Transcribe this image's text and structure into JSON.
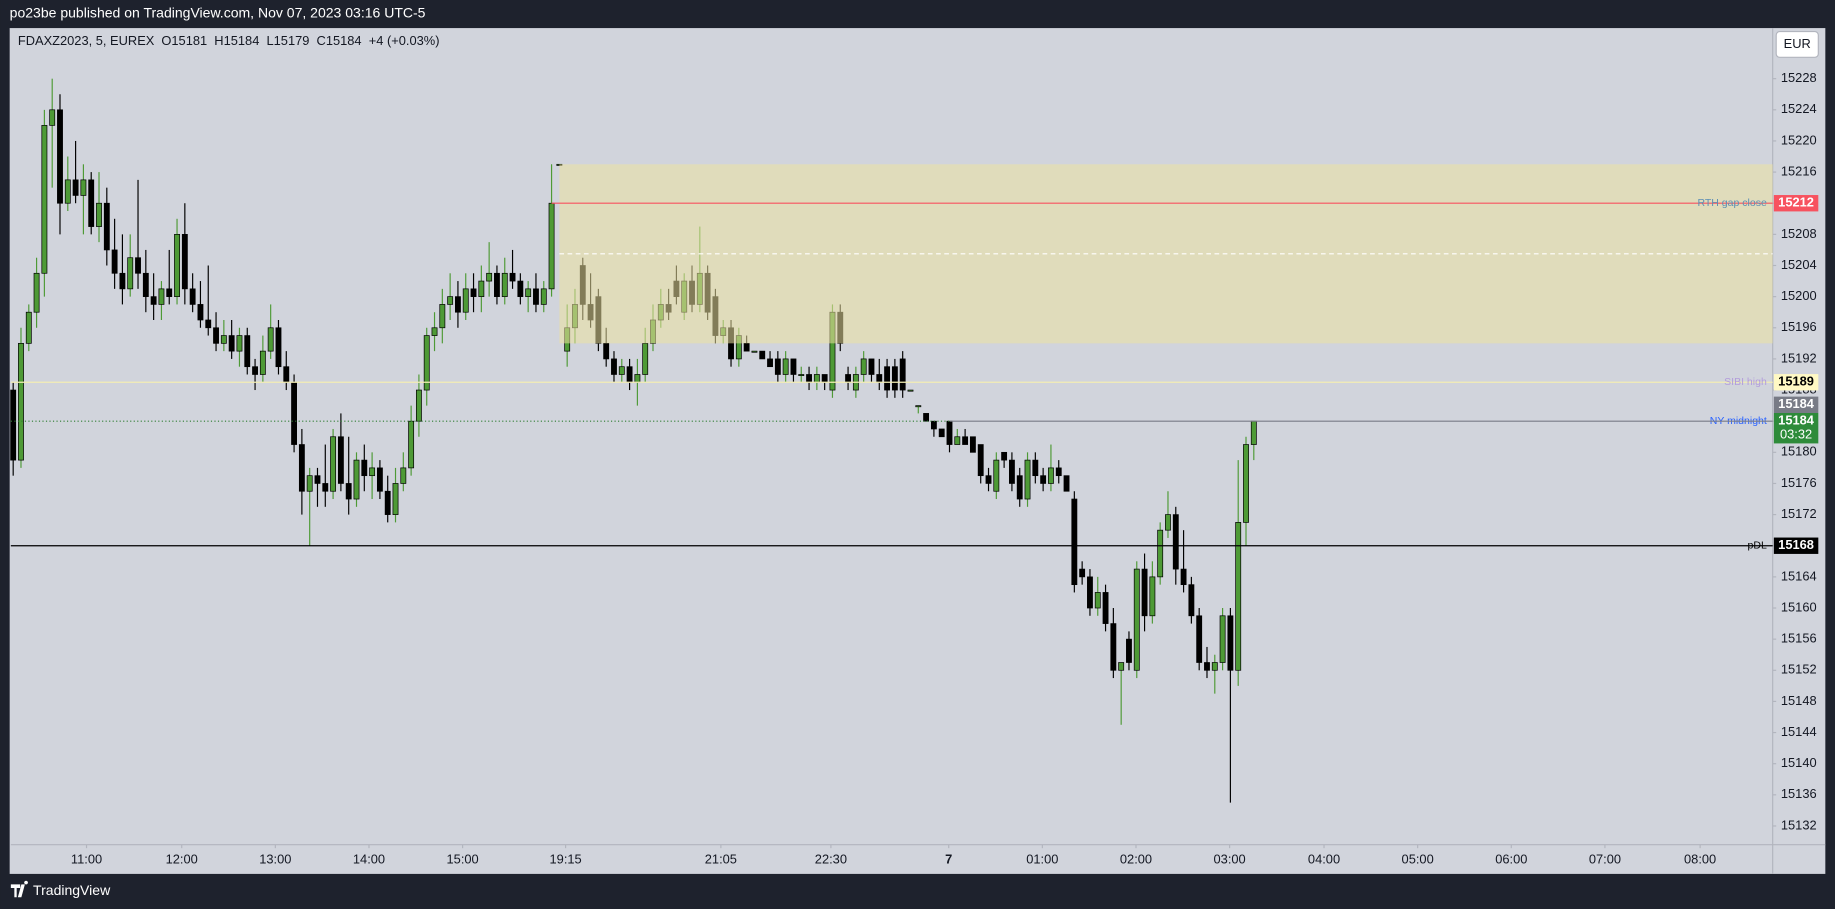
{
  "header": {
    "publisher": "po23be published on TradingView.com, Nov 07, 2023 03:16 UTC-5",
    "footer": "TradingView"
  },
  "chart_data": {
    "type": "candlestick",
    "symbol": "FDAXZ2023, 5, EUREX",
    "legend": "O15181  H15184  L15179  C15184  +4 (+0.03%)",
    "currency": "EUR",
    "ylim": [
      15129.6,
      15234.5
    ],
    "yticks": [
      15132,
      15136,
      15140,
      15144,
      15148,
      15152,
      15156,
      15160,
      15164,
      15168,
      15172,
      15176,
      15180,
      15184,
      15188,
      15192,
      15196,
      15200,
      15204,
      15208,
      15212,
      15216,
      15220,
      15224,
      15228
    ],
    "xlim": [
      -0.3,
      225.5
    ],
    "xticks": [
      {
        "value": 9.4,
        "label": "11:00"
      },
      {
        "value": 21.6,
        "label": "12:00"
      },
      {
        "value": 33.6,
        "label": "13:00"
      },
      {
        "value": 45.6,
        "label": "14:00"
      },
      {
        "value": 57.6,
        "label": "15:00"
      },
      {
        "value": 70.8,
        "label": "19:15"
      },
      {
        "value": 90.7,
        "label": "21:05"
      },
      {
        "value": 104.8,
        "label": "22:30"
      },
      {
        "value": 119.9,
        "label": "7"
      },
      {
        "value": 131.9,
        "label": "01:00"
      },
      {
        "value": 143.9,
        "label": "02:00"
      },
      {
        "value": 155.9,
        "label": "03:00"
      },
      {
        "value": 168.0,
        "label": "04:00"
      },
      {
        "value": 180.0,
        "label": "05:00"
      },
      {
        "value": 192.0,
        "label": "06:00"
      },
      {
        "value": 204.0,
        "label": "07:00"
      },
      {
        "value": 216.2,
        "label": "08:00"
      }
    ],
    "grid": false,
    "up_color": "#4e9a36",
    "down_color": "#000000",
    "last_color": "#2e8b3a",
    "countdown": "03:32",
    "candles": [
      [
        15188,
        15189,
        15177,
        15179
      ],
      [
        15179,
        15196,
        15178,
        15194
      ],
      [
        15194,
        15199,
        15193,
        15198
      ],
      [
        15198,
        15205,
        15196,
        15203
      ],
      [
        15203,
        15224,
        15200,
        15222
      ],
      [
        15222,
        15228,
        15214,
        15224
      ],
      [
        15224,
        15226,
        15208,
        15212
      ],
      [
        15212,
        15218,
        15211,
        15215
      ],
      [
        15215,
        15220,
        15212,
        15213
      ],
      [
        15213,
        15217,
        15208,
        15215
      ],
      [
        15215,
        15216,
        15208,
        15209
      ],
      [
        15209,
        15216,
        15207,
        15212
      ],
      [
        15212,
        15214,
        15204,
        15206
      ],
      [
        15206,
        15210,
        15201,
        15203
      ],
      [
        15203,
        15208,
        15199,
        15201
      ],
      [
        15201,
        15208,
        15200,
        15205
      ],
      [
        15205,
        15215,
        15201,
        15203
      ],
      [
        15203,
        15206,
        15198,
        15200
      ],
      [
        15200,
        15203,
        15197,
        15199
      ],
      [
        15199,
        15202,
        15197,
        15201
      ],
      [
        15201,
        15206,
        15199,
        15200
      ],
      [
        15200,
        15210,
        15199,
        15208
      ],
      [
        15208,
        15212,
        15199,
        15201
      ],
      [
        15201,
        15203,
        15198,
        15199
      ],
      [
        15199,
        15202,
        15196,
        15197
      ],
      [
        15197,
        15204,
        15195,
        15196
      ],
      [
        15196,
        15198,
        15193,
        15194
      ],
      [
        15194,
        15197,
        15193,
        15195
      ],
      [
        15195,
        15197,
        15192,
        15193
      ],
      [
        15193,
        15196,
        15191,
        15195
      ],
      [
        15195,
        15196,
        15190,
        15191
      ],
      [
        15191,
        15192,
        15188,
        15190
      ],
      [
        15190,
        15195,
        15189,
        15193
      ],
      [
        15193,
        15199,
        15192,
        15196
      ],
      [
        15196,
        15197,
        15190,
        15191
      ],
      [
        15191,
        15193,
        15188,
        15189
      ],
      [
        15189,
        15190,
        15180,
        15181
      ],
      [
        15181,
        15183,
        15172,
        15175
      ],
      [
        15175,
        15178,
        15168,
        15177
      ],
      [
        15177,
        15178,
        15173,
        15176
      ],
      [
        15176,
        15181,
        15173,
        15175
      ],
      [
        15175,
        15183,
        15174,
        15182
      ],
      [
        15182,
        15185,
        15175,
        15176
      ],
      [
        15176,
        15182,
        15172,
        15174
      ],
      [
        15174,
        15180,
        15173,
        15179
      ],
      [
        15179,
        15181,
        15175,
        15177
      ],
      [
        15177,
        15180,
        15174,
        15178
      ],
      [
        15178,
        15179,
        15174,
        15175
      ],
      [
        15175,
        15177,
        15171,
        15172
      ],
      [
        15172,
        15178,
        15171,
        15176
      ],
      [
        15176,
        15180,
        15175,
        15178
      ],
      [
        15178,
        15186,
        15177,
        15184
      ],
      [
        15184,
        15190,
        15182,
        15188
      ],
      [
        15188,
        15196,
        15186,
        15195
      ],
      [
        15195,
        15198,
        15193,
        15196
      ],
      [
        15196,
        15201,
        15194,
        15199
      ],
      [
        15199,
        15203,
        15197,
        15200
      ],
      [
        15200,
        15202,
        15196,
        15198
      ],
      [
        15198,
        15203,
        15197,
        15201
      ],
      [
        15201,
        15203,
        15198,
        15200
      ],
      [
        15200,
        15204,
        15198,
        15202
      ],
      [
        15202,
        15207,
        15200,
        15203
      ],
      [
        15203,
        15204,
        15199,
        15200
      ],
      [
        15200,
        15205,
        15199,
        15203
      ],
      [
        15203,
        15206,
        15201,
        15202
      ],
      [
        15202,
        15203,
        15199,
        15200
      ],
      [
        15200,
        15202,
        15198,
        15201
      ],
      [
        15201,
        15203,
        15198,
        15199
      ],
      [
        15199,
        15202,
        15198,
        15201
      ],
      [
        15201,
        15217,
        15200,
        15212
      ],
      [
        15217,
        15217,
        15217,
        15217
      ],
      [
        15193,
        15199,
        15191,
        15196
      ],
      [
        15196,
        15201,
        15194,
        15199
      ],
      [
        15204,
        15205,
        15197,
        15199
      ],
      [
        15199,
        15203,
        15196,
        15197
      ],
      [
        15200,
        15201,
        15193,
        15194
      ],
      [
        15194,
        15196,
        15191,
        15192
      ],
      [
        15192,
        15193,
        15189,
        15190
      ],
      [
        15190,
        15192,
        15189,
        15191
      ],
      [
        15191,
        15192,
        15188,
        15189
      ],
      [
        15189,
        15192,
        15186,
        15190
      ],
      [
        15190,
        15196,
        15189,
        15194
      ],
      [
        15194,
        15199,
        15193,
        15197
      ],
      [
        15197,
        15201,
        15196,
        15199
      ],
      [
        15199,
        15201,
        15197,
        15198
      ],
      [
        15202,
        15204,
        15199,
        15200
      ],
      [
        15198,
        15203,
        15197,
        15202
      ],
      [
        15202,
        15204,
        15198,
        15199
      ],
      [
        15199,
        15209,
        15198,
        15203
      ],
      [
        15203,
        15204,
        15197,
        15198
      ],
      [
        15200,
        15201,
        15194,
        15195
      ],
      [
        15195,
        15197,
        15194,
        15196
      ],
      [
        15196,
        15197,
        15191,
        15192
      ],
      [
        15192,
        15196,
        15191,
        15195
      ],
      [
        15194,
        15195,
        15193,
        15193
      ],
      [
        15193,
        15193,
        15193,
        15193
      ],
      [
        15193,
        15193,
        15192,
        15192
      ],
      [
        15192,
        15193,
        15191,
        15191
      ],
      [
        15192,
        15193,
        15189,
        15190
      ],
      [
        15190,
        15193,
        15189,
        15192
      ],
      [
        15192,
        15192,
        15189,
        15190
      ],
      [
        15190,
        15191,
        15189,
        15190
      ],
      [
        15190,
        15191,
        15188,
        15189
      ],
      [
        15189,
        15191,
        15188,
        15190
      ],
      [
        15190,
        15190,
        15188,
        15189
      ],
      [
        15188,
        15199,
        15187,
        15198
      ],
      [
        15198,
        15199,
        15193,
        15194
      ],
      [
        15190,
        15191,
        15188,
        15189
      ],
      [
        15188,
        15191,
        15187,
        15190
      ],
      [
        15190,
        15193,
        15189,
        15192
      ],
      [
        15192,
        15192,
        15189,
        15190
      ],
      [
        15190,
        15192,
        15188,
        15189
      ],
      [
        15191,
        15192,
        15187,
        15188
      ],
      [
        15191,
        15192,
        15187,
        15188
      ],
      [
        15192,
        15193,
        15187,
        15188
      ],
      [
        15188,
        15188,
        15188,
        15188
      ],
      [
        15186,
        15186,
        15185,
        15186
      ],
      [
        15185,
        15185,
        15184,
        15184
      ],
      [
        15184,
        15184,
        15182,
        15183
      ],
      [
        15183,
        15183,
        15182,
        15182
      ],
      [
        15184,
        15184,
        15180,
        15181
      ],
      [
        15181,
        15183,
        15181,
        15182
      ],
      [
        15182,
        15183,
        15181,
        15181
      ],
      [
        15182,
        15182,
        15180,
        15180
      ],
      [
        15181,
        15181,
        15176,
        15177
      ],
      [
        15177,
        15178,
        15175,
        15176
      ],
      [
        15175,
        15180,
        15174,
        15179
      ],
      [
        15180,
        15180,
        15178,
        15179
      ],
      [
        15179,
        15180,
        15175,
        15176
      ],
      [
        15177,
        15178,
        15173,
        15174
      ],
      [
        15174,
        15180,
        15173,
        15179
      ],
      [
        15179,
        15180,
        15176,
        15177
      ],
      [
        15177,
        15178,
        15175,
        15176
      ],
      [
        15176,
        15181,
        15175,
        15178
      ],
      [
        15178,
        15179,
        15176,
        15177
      ],
      [
        15177,
        15177,
        15175,
        15175
      ],
      [
        15174,
        15175,
        15162,
        15163
      ],
      [
        15165,
        15166,
        15163,
        15164
      ],
      [
        15164,
        15165,
        15159,
        15160
      ],
      [
        15160,
        15164,
        15159,
        15162
      ],
      [
        15162,
        15163,
        15157,
        15158
      ],
      [
        15158,
        15160,
        15151,
        15152
      ],
      [
        15152,
        15153,
        15145,
        15153
      ],
      [
        15156,
        15157,
        15152,
        15153
      ],
      [
        15152,
        15166,
        15151,
        15165
      ],
      [
        15165,
        15167,
        15157,
        15159
      ],
      [
        15159,
        15166,
        15158,
        15164
      ],
      [
        15164,
        15171,
        15163,
        15170
      ],
      [
        15170,
        15175,
        15169,
        15172
      ],
      [
        15172,
        15173,
        15163,
        15165
      ],
      [
        15165,
        15170,
        15162,
        15163
      ],
      [
        15163,
        15164,
        15158,
        15159
      ],
      [
        15159,
        15160,
        15152,
        15153
      ],
      [
        15153,
        15155,
        15151,
        15152
      ],
      [
        15152,
        15154,
        15149,
        15153
      ],
      [
        15153,
        15160,
        15152,
        15159
      ],
      [
        15159,
        15160,
        15135,
        15152
      ],
      [
        15152,
        15179,
        15150,
        15171
      ],
      [
        15171,
        15182,
        15168,
        15181
      ],
      [
        15181,
        15184,
        15179,
        15184
      ]
    ],
    "zone": {
      "from": 70,
      "high": 15217,
      "low": 15194,
      "mid": 15205.5,
      "color": "#ece1a0",
      "line_color": "#ffffff"
    },
    "levels": [
      {
        "name": "RTH gap close",
        "value": 15212,
        "from": 69,
        "color": "#f7525f",
        "text_color": "#5d8fb5",
        "label_fill": "#f7525f",
        "label_text": "#ffffff"
      },
      {
        "name": "SIBI high",
        "value": 15189,
        "color": "#f3eeb4",
        "text_color": "#b39ddb",
        "label_fill": "#fff9c4",
        "label_text": "#000000"
      },
      {
        "name": "NY midnight",
        "value": 15184,
        "to": 120,
        "style": "dotted",
        "color": "#2e7d32",
        "text_color": "#2962ff"
      },
      {
        "value": 15184,
        "from": 120,
        "color": "#787b86",
        "label_fill": "#787b86",
        "label_text": "#ffffff"
      },
      {
        "name": "pDL",
        "value": 15168,
        "color": "#000000",
        "text_color": "#000000",
        "label_fill": "#000000",
        "label_text": "#ffffff"
      }
    ]
  }
}
